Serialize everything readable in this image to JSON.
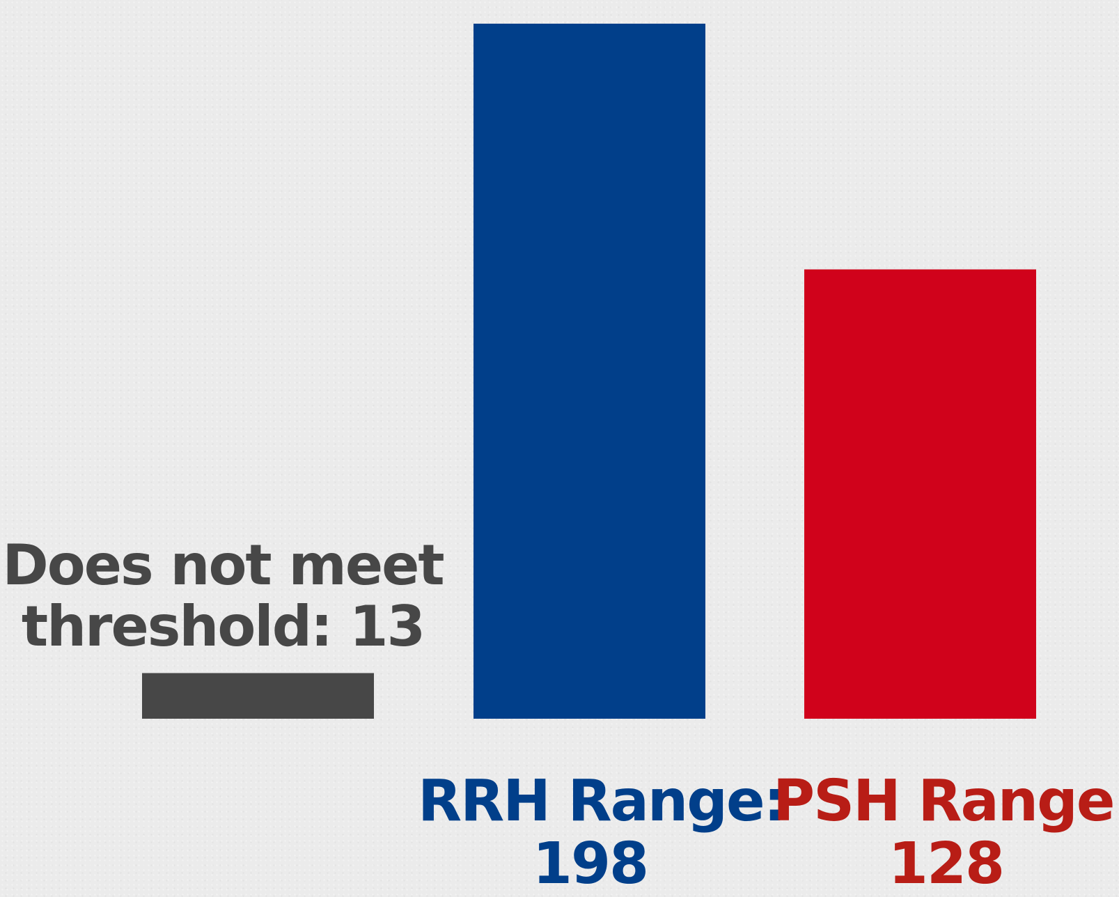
{
  "chart_data": {
    "type": "bar",
    "categories": [
      "Does not meet threshold",
      "RRH Range",
      "PSH Range"
    ],
    "values": [
      13,
      198,
      128
    ],
    "label_prefix": [
      "Does not meet",
      "RRH Range:",
      "PSH Range:"
    ],
    "label_value": [
      "threshold: 13",
      "198",
      "128"
    ],
    "colors": [
      "#474747",
      "#013f8a",
      "#d0021b"
    ],
    "label_colors": [
      "#474747",
      "#013f8a",
      "#b81d16"
    ],
    "title": "",
    "xlabel": "",
    "ylabel": "",
    "ylim": [
      0,
      198
    ],
    "grid": false,
    "legend": "none"
  }
}
